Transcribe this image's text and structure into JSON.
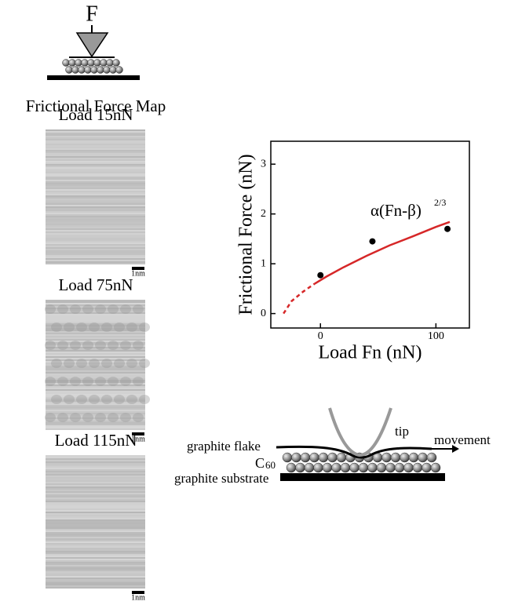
{
  "force_label": "F",
  "map_title": "Frictional Force Map",
  "maps": [
    {
      "label": "Load 15nN",
      "scale": "1nm"
    },
    {
      "label": "Load 75nN",
      "scale": "1nm"
    },
    {
      "label": "Load 115nN",
      "scale": "1nm"
    }
  ],
  "schematic": {
    "tip": "tip",
    "flake": "graphite flake",
    "movement": "movement",
    "molecule": "C",
    "molecule_sub": "60",
    "substrate": "graphite substrate"
  },
  "chart_data": {
    "type": "scatter",
    "xlabel": "Load Fn (nN)",
    "ylabel": "Frictional Force (nN)",
    "annotation": "α(Fn-β)",
    "annotation_exponent": "2/3",
    "xlim": [
      -43,
      129
    ],
    "xticks": [
      0,
      100
    ],
    "ylim": [
      -0.29,
      3.46
    ],
    "yticks": [
      0,
      1,
      2,
      3
    ],
    "series": [
      {
        "color": "#000000",
        "x": [
          0,
          45,
          110
        ],
        "values": [
          0.77,
          1.45,
          1.7
        ]
      },
      {
        "color": "#d62728",
        "line": true,
        "dashed": true,
        "x": [
          -32,
          -25,
          -15,
          -5
        ],
        "values": [
          0,
          0.25,
          0.44,
          0.6
        ]
      },
      {
        "color": "#d62728",
        "line": true,
        "x": [
          -5,
          5,
          20,
          40,
          60,
          80,
          100,
          112
        ],
        "values": [
          0.6,
          0.74,
          0.93,
          1.16,
          1.37,
          1.55,
          1.74,
          1.84
        ]
      }
    ]
  }
}
